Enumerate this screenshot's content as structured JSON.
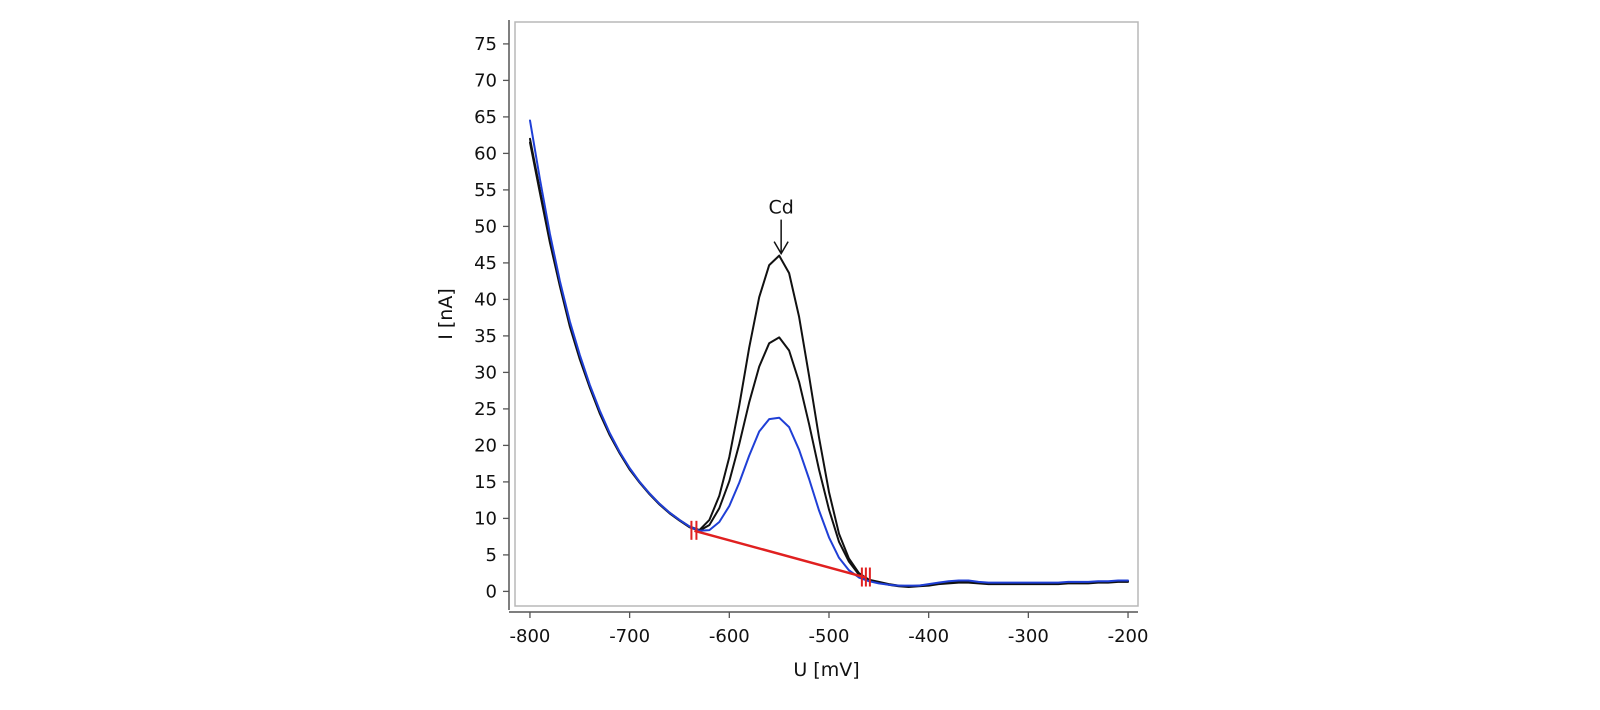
{
  "chart_data": {
    "type": "line",
    "xlabel": "U [mV]",
    "ylabel": "I [nA]",
    "xlim": [
      -815,
      -190
    ],
    "ylim": [
      -2,
      78
    ],
    "x_ticks": [
      -800,
      -700,
      -600,
      -500,
      -400,
      -300,
      -200
    ],
    "y_ticks": [
      0,
      5,
      10,
      15,
      20,
      25,
      30,
      35,
      40,
      45,
      50,
      55,
      60,
      65,
      70,
      75
    ],
    "grid": false,
    "legend": "none",
    "annotations": [
      {
        "text": "Cd",
        "x": -548,
        "y": 46
      }
    ],
    "baseline": {
      "color": "#e02020",
      "points": [
        [
          -635,
          8.3
        ],
        [
          -463,
          1.9
        ]
      ]
    },
    "series": [
      {
        "color": "#111111",
        "x": [
          -800,
          -790,
          -780,
          -770,
          -760,
          -750,
          -740,
          -730,
          -720,
          -710,
          -700,
          -690,
          -680,
          -670,
          -660,
          -650,
          -640,
          -630,
          -620,
          -610,
          -600,
          -590,
          -580,
          -570,
          -560,
          -550,
          -540,
          -530,
          -520,
          -510,
          -500,
          -490,
          -480,
          -470,
          -460,
          -450,
          -440,
          -430,
          -420,
          -410,
          -400,
          -390,
          -380,
          -370,
          -360,
          -350,
          -340,
          -330,
          -320,
          -310,
          -300,
          -290,
          -280,
          -270,
          -260,
          -250,
          -240,
          -230,
          -220,
          -210,
          -200
        ],
        "y": [
          62,
          55,
          48,
          42,
          36.5,
          32,
          28,
          24.5,
          21.5,
          19,
          16.8,
          15,
          13.4,
          12,
          10.8,
          9.8,
          8.9,
          8.4,
          9.8,
          13.1,
          18.4,
          25.5,
          33.4,
          40.3,
          44.7,
          46,
          43.6,
          37.6,
          29.5,
          21.1,
          13.6,
          7.9,
          4.5,
          2.5,
          1.6,
          1.3,
          1.0,
          0.8,
          0.7,
          0.8,
          0.9,
          1.1,
          1.2,
          1.3,
          1.3,
          1.2,
          1.1,
          1.1,
          1.1,
          1.1,
          1.1,
          1.1,
          1.1,
          1.1,
          1.2,
          1.2,
          1.2,
          1.3,
          1.3,
          1.4,
          1.4
        ]
      },
      {
        "color": "#111111",
        "x": [
          -800,
          -790,
          -780,
          -770,
          -760,
          -750,
          -740,
          -730,
          -720,
          -710,
          -700,
          -690,
          -680,
          -670,
          -660,
          -650,
          -640,
          -630,
          -620,
          -610,
          -600,
          -590,
          -580,
          -570,
          -560,
          -550,
          -540,
          -530,
          -520,
          -510,
          -500,
          -490,
          -480,
          -470,
          -460,
          -450,
          -440,
          -430,
          -420,
          -410,
          -400,
          -390,
          -380,
          -370,
          -360,
          -350,
          -340,
          -330,
          -320,
          -310,
          -300,
          -290,
          -280,
          -270,
          -260,
          -250,
          -240,
          -230,
          -220,
          -210,
          -200
        ],
        "y": [
          61.5,
          54.6,
          47.8,
          41.8,
          36.3,
          31.8,
          27.9,
          24.4,
          21.4,
          18.9,
          16.7,
          14.9,
          13.3,
          11.9,
          10.7,
          9.7,
          8.8,
          8.3,
          9.1,
          11.4,
          15.1,
          20.2,
          25.9,
          30.8,
          34,
          34.8,
          33,
          28.7,
          22.9,
          16.7,
          11.2,
          6.8,
          4.1,
          2.3,
          1.5,
          1.2,
          0.9,
          0.7,
          0.6,
          0.7,
          0.8,
          1.0,
          1.1,
          1.2,
          1.2,
          1.1,
          1.0,
          1.0,
          1.0,
          1.0,
          1.0,
          1.0,
          1.0,
          1.0,
          1.1,
          1.1,
          1.1,
          1.2,
          1.2,
          1.3,
          1.3
        ]
      },
      {
        "color": "#1f3fd6",
        "x": [
          -800,
          -790,
          -780,
          -770,
          -760,
          -750,
          -740,
          -730,
          -720,
          -710,
          -700,
          -690,
          -680,
          -670,
          -660,
          -650,
          -640,
          -630,
          -620,
          -610,
          -600,
          -590,
          -580,
          -570,
          -560,
          -550,
          -540,
          -530,
          -520,
          -510,
          -500,
          -490,
          -480,
          -470,
          -460,
          -450,
          -440,
          -430,
          -420,
          -410,
          -400,
          -390,
          -380,
          -370,
          -360,
          -350,
          -340,
          -330,
          -320,
          -310,
          -300,
          -290,
          -280,
          -270,
          -260,
          -250,
          -240,
          -230,
          -220,
          -210,
          -200
        ],
        "y": [
          64.5,
          56.5,
          49,
          42.5,
          37,
          32.4,
          28.3,
          24.8,
          21.7,
          19.1,
          16.9,
          15,
          13.4,
          12,
          10.8,
          9.8,
          8.9,
          8.3,
          8.4,
          9.5,
          11.7,
          14.9,
          18.6,
          21.9,
          23.6,
          23.8,
          22.5,
          19.4,
          15.4,
          11.1,
          7.4,
          4.6,
          2.9,
          1.9,
          1.4,
          1.1,
          0.9,
          0.8,
          0.8,
          0.8,
          1.0,
          1.2,
          1.4,
          1.5,
          1.5,
          1.3,
          1.2,
          1.2,
          1.2,
          1.2,
          1.2,
          1.2,
          1.2,
          1.2,
          1.3,
          1.3,
          1.3,
          1.4,
          1.4,
          1.5,
          1.5
        ]
      }
    ]
  }
}
